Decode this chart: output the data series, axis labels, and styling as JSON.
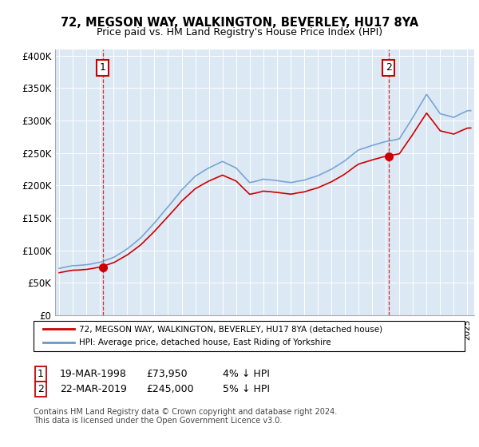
{
  "title": "72, MEGSON WAY, WALKINGTON, BEVERLEY, HU17 8YA",
  "subtitle": "Price paid vs. HM Land Registry's House Price Index (HPI)",
  "ylim": [
    0,
    410000
  ],
  "yticks": [
    0,
    50000,
    100000,
    150000,
    200000,
    250000,
    300000,
    350000,
    400000
  ],
  "ytick_labels": [
    "£0",
    "£50K",
    "£100K",
    "£150K",
    "£200K",
    "£250K",
    "£300K",
    "£350K",
    "£400K"
  ],
  "sale1_price": 73950,
  "sale1_year": 1998,
  "sale1_date_str": "19-MAR-1998",
  "sale1_pct": "4% ↓ HPI",
  "sale2_price": 245000,
  "sale2_year": 2019,
  "sale2_date_str": "22-MAR-2019",
  "sale2_pct": "5% ↓ HPI",
  "legend_line1": "72, MEGSON WAY, WALKINGTON, BEVERLEY, HU17 8YA (detached house)",
  "legend_line2": "HPI: Average price, detached house, East Riding of Yorkshire",
  "footnote1": "Contains HM Land Registry data © Crown copyright and database right 2024.",
  "footnote2": "This data is licensed under the Open Government Licence v3.0.",
  "line_color_sold": "#cc0000",
  "line_color_hpi": "#6699cc",
  "plot_bg": "#dce9f5",
  "grid_color": "#ffffff",
  "marker_box_color": "#cc0000",
  "sale1_price_str": "£73,950",
  "sale2_price_str": "£245,000"
}
